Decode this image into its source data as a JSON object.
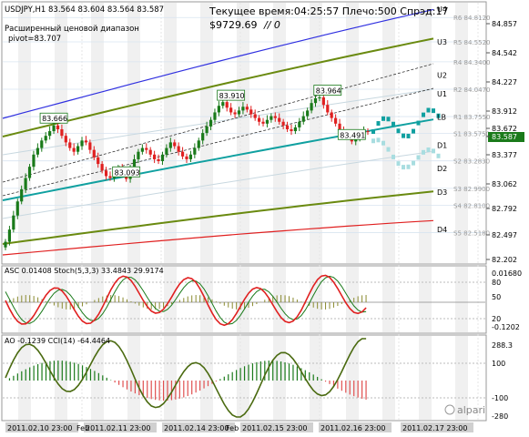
{
  "header": {
    "symbol_line": "USDJPY,H1  83.564 83.604 83.564 83.587",
    "server_time": "Текущее время:04:25:57 Плечо:500 Спрэд:17",
    "balance": "$9729.69",
    "slashes": "// 0",
    "range_label": "Расширенный ценовой диапазон",
    "pivot_label": "pivot=83.707"
  },
  "colors": {
    "bull": "#1a7a1a",
    "bear": "#e02020",
    "teal": "#10a0a0",
    "olive": "#6a8a10",
    "blue": "#3030e0",
    "red": "#e02020",
    "grid": "#e6e6e6",
    "band": "#f0f0f0"
  },
  "levels": [
    {
      "tag": "U4",
      "price": "",
      "value": 84.9
    },
    {
      "tag": "R6",
      "price": "R6 84.8120",
      "value": 84.812
    },
    {
      "tag": "U3",
      "price": "",
      "value": 84.55
    },
    {
      "tag": "R5",
      "price": "R5 84.5520",
      "value": 84.552
    },
    {
      "tag": "R4",
      "price": "R4 84.3400",
      "value": 84.34
    },
    {
      "tag": "U2",
      "price": "",
      "value": 84.2
    },
    {
      "tag": "U1",
      "price": "",
      "value": 84.0
    },
    {
      "tag": "R2",
      "price": "R2 84.0470",
      "value": 84.047
    },
    {
      "tag": "LB",
      "price": "",
      "value": 83.75
    },
    {
      "tag": "R1",
      "price": "R1 83.7550",
      "value": 83.755
    },
    {
      "tag": "S1",
      "price": "S1 83.5750",
      "value": 83.575
    },
    {
      "tag": "D1",
      "price": "",
      "value": 83.45
    },
    {
      "tag": "D2",
      "price": "",
      "value": 83.2
    },
    {
      "tag": "S2",
      "price": "S2 83.2830",
      "value": 83.283
    },
    {
      "tag": "D3",
      "price": "",
      "value": 82.95
    },
    {
      "tag": "S3",
      "price": "S3 82.9900",
      "value": 82.99
    },
    {
      "tag": "S4",
      "price": "S4 82.8100",
      "value": 82.81
    },
    {
      "tag": "D4",
      "price": "",
      "value": 82.55
    },
    {
      "tag": "S5",
      "price": "S5 82.5180",
      "value": 82.518
    }
  ],
  "price_axis": [
    "84.857",
    "84.542",
    "84.227",
    "83.912",
    "83.672",
    "83.587",
    "83.377",
    "83.062",
    "82.792",
    "82.497",
    "82.202"
  ],
  "current_price": "83.587",
  "annotations": [
    {
      "label": "83.666",
      "x_idx": 12,
      "value": 83.666
    },
    {
      "label": "83.093",
      "x_idx": 30,
      "value": 83.093
    },
    {
      "label": "83.910",
      "x_idx": 56,
      "value": 83.91
    },
    {
      "label": "83.964",
      "x_idx": 80,
      "value": 83.964
    },
    {
      "label": "83.491",
      "x_idx": 86,
      "value": 83.491
    }
  ],
  "osc1": {
    "label": "ASC 0.01408  Stoch(5,3,3) 33.4843 29.9174",
    "axis": [
      "80",
      "50",
      "20",
      "0.01680",
      "-0.1202"
    ]
  },
  "osc2": {
    "label": "AO -0.1239  CCI(14) -64.4464",
    "axis": [
      "288.3",
      "100",
      "-100",
      "-280"
    ]
  },
  "time_axis": [
    "2011.02.10 23:00",
    "2011.02.11 23:00",
    "2011.02.14 23:00",
    "2011.02.15 23:00",
    "2011.02.16 23:00",
    "2011.02.17 23:00"
  ],
  "time_partial": [
    "Feb",
    "Feb"
  ],
  "watermark": "alpari",
  "chart_data": {
    "type": "line",
    "title": "USDJPY,H1",
    "ylim": [
      82.202,
      84.96
    ],
    "series": [
      {
        "name": "close",
        "values": [
          82.42,
          82.55,
          82.7,
          82.85,
          82.98,
          83.1,
          83.22,
          83.35,
          83.42,
          83.5,
          83.55,
          83.6,
          83.66,
          83.62,
          83.55,
          83.48,
          83.42,
          83.38,
          83.44,
          83.5,
          83.48,
          83.4,
          83.32,
          83.25,
          83.18,
          83.12,
          83.1,
          83.15,
          83.2,
          83.15,
          83.09,
          83.2,
          83.3,
          83.38,
          83.42,
          83.4,
          83.35,
          83.3,
          83.28,
          83.35,
          83.42,
          83.48,
          83.44,
          83.38,
          83.33,
          83.3,
          83.35,
          83.42,
          83.5,
          83.58,
          83.65,
          83.72,
          83.8,
          83.87,
          83.91,
          83.85,
          83.8,
          83.78,
          83.82,
          83.86,
          83.83,
          83.78,
          83.74,
          83.7,
          83.68,
          83.72,
          83.76,
          83.74,
          83.7,
          83.66,
          83.62,
          83.6,
          83.64,
          83.7,
          83.76,
          83.82,
          83.9,
          83.95,
          83.96,
          83.88,
          83.8,
          83.74,
          83.68,
          83.62,
          83.58,
          83.55,
          83.49,
          83.52,
          83.56,
          83.6,
          83.59
        ]
      }
    ]
  }
}
